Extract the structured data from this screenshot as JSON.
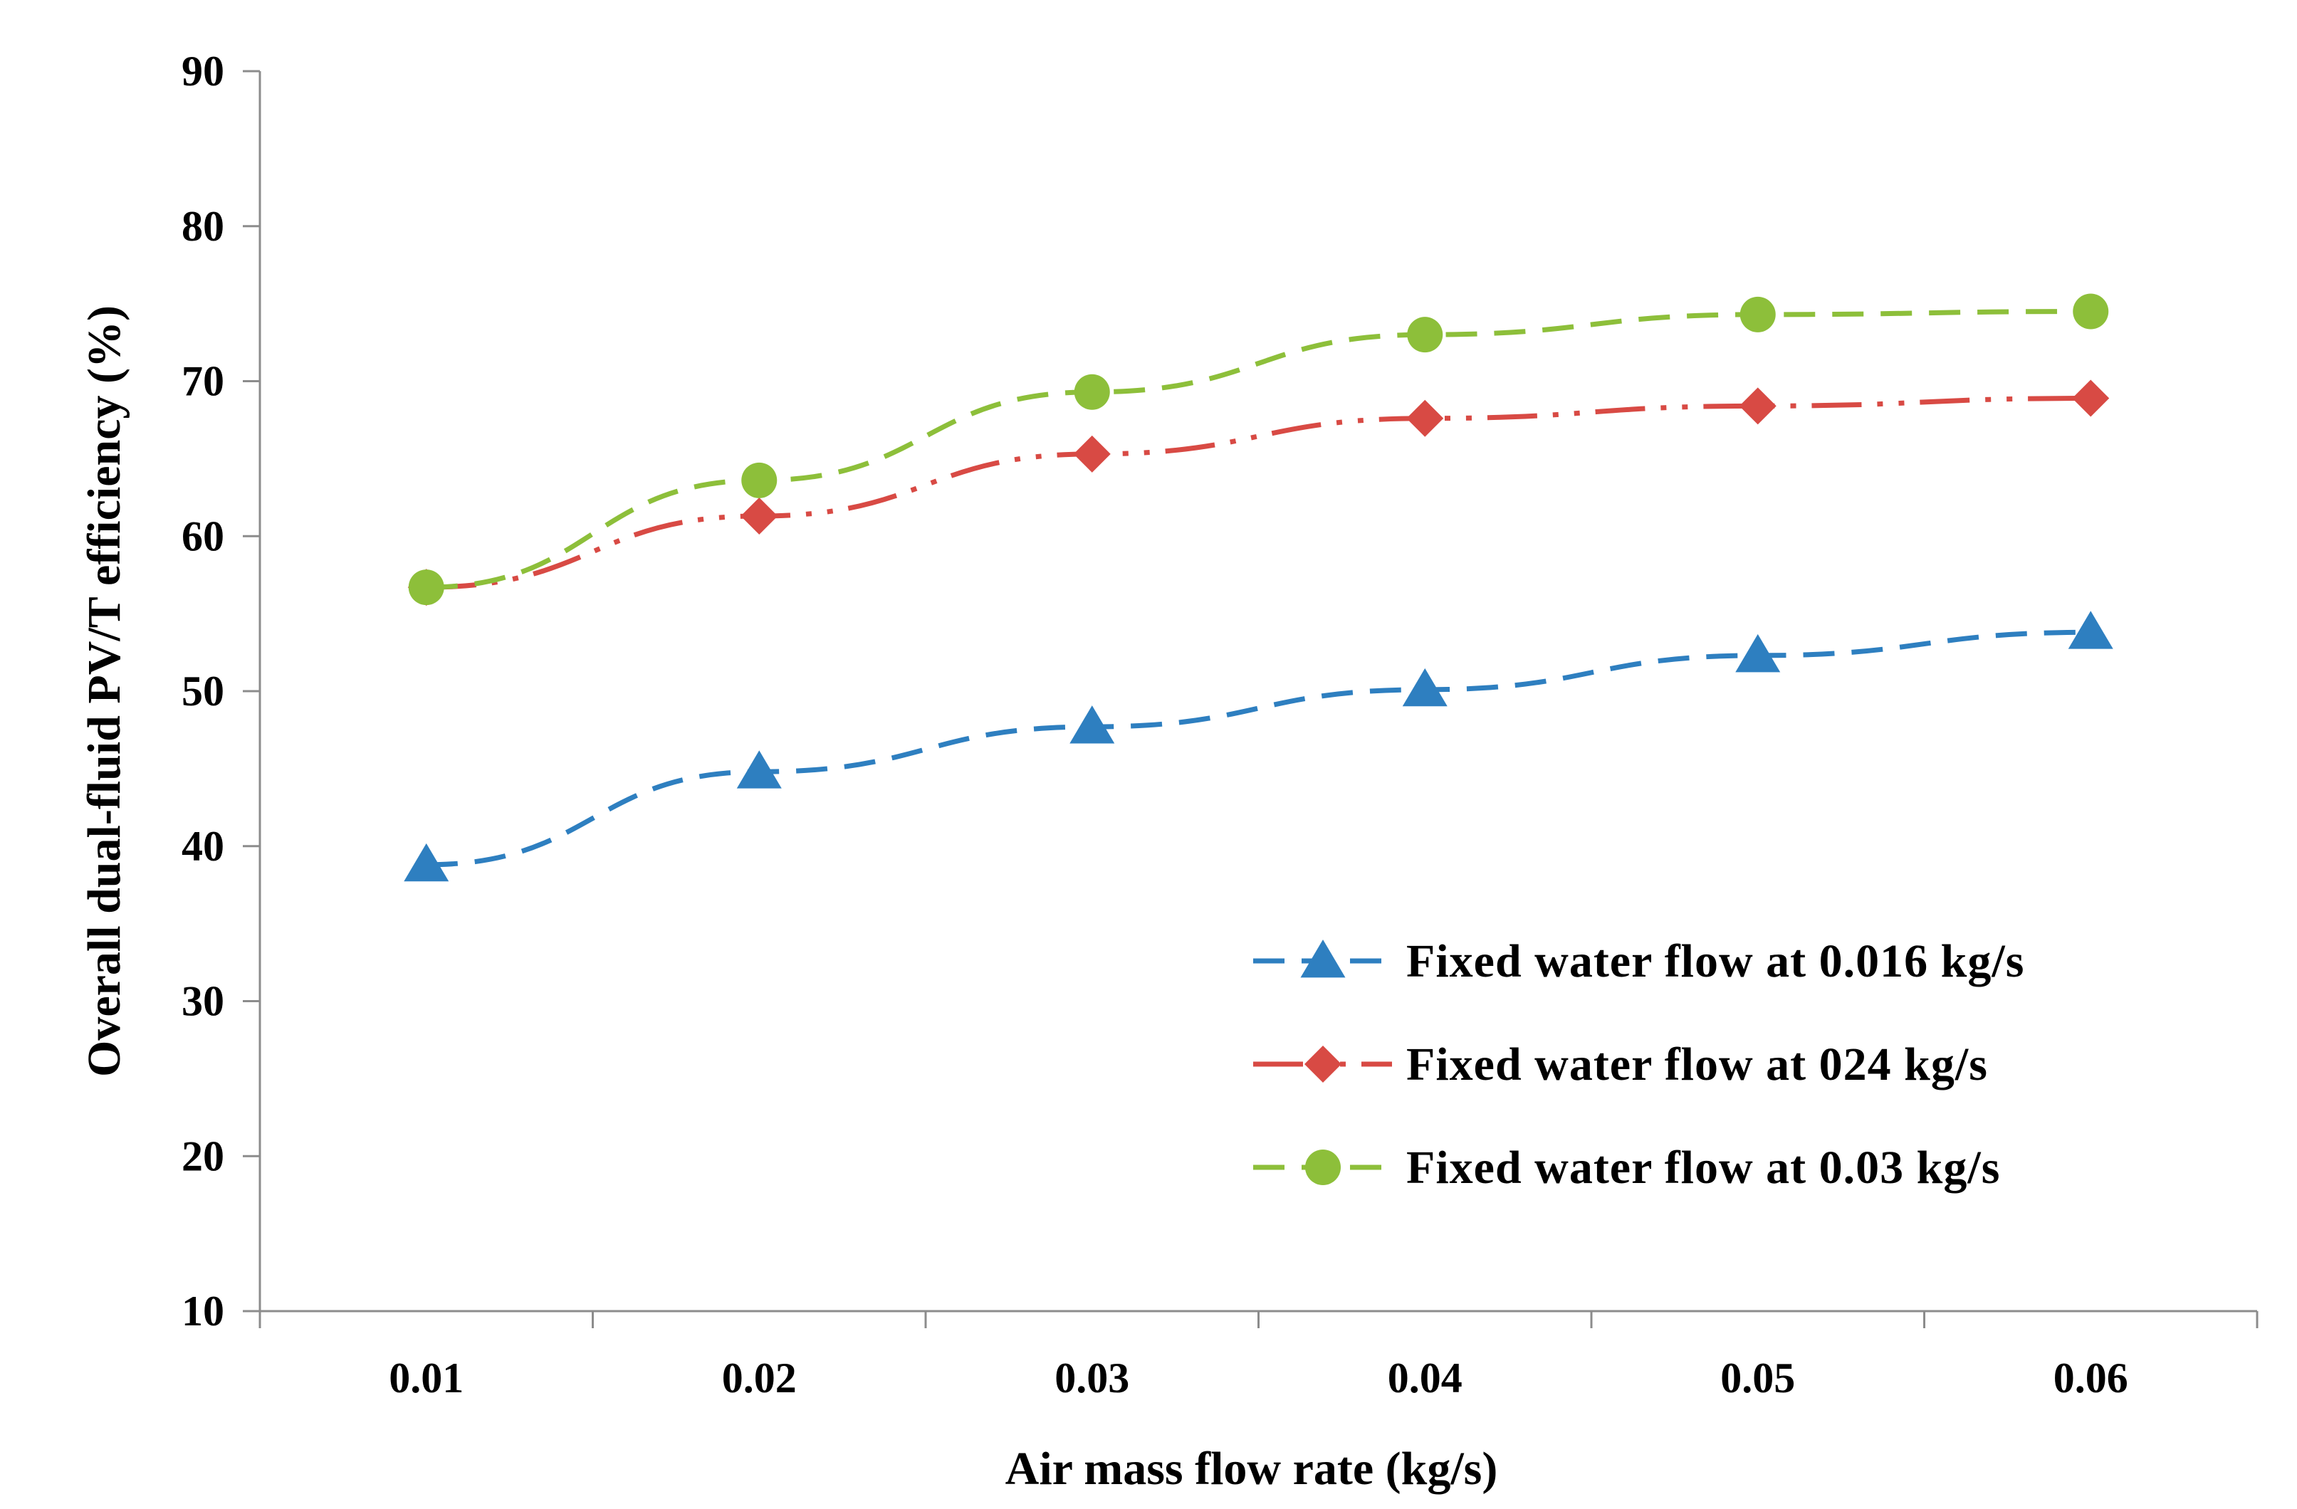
{
  "chart_data": {
    "type": "line",
    "title": "",
    "xlabel": "Air mass flow rate (kg/s)",
    "ylabel": "Overall dual-fluid PV/T efficiency (%)",
    "x": [
      0.01,
      0.02,
      0.03,
      0.04,
      0.05,
      0.06
    ],
    "x_tick_labels": [
      "0.01",
      "0.02",
      "0.03",
      "0.04",
      "0.05",
      "0.06"
    ],
    "y_ticks": [
      10,
      20,
      30,
      40,
      50,
      60,
      70,
      80,
      90
    ],
    "y_tick_labels": [
      "10",
      "20",
      "30",
      "40",
      "50",
      "60",
      "70",
      "80",
      "90"
    ],
    "ylim": [
      10,
      90
    ],
    "grid": false,
    "legend_position": "bottom-right",
    "series": [
      {
        "name": "Fixed water flow at 0.016 kg/s",
        "values": [
          38.8,
          44.8,
          47.7,
          50.1,
          52.3,
          53.8
        ],
        "color": "#2e7fc0",
        "marker": "triangle",
        "line_style": "dashed"
      },
      {
        "name": "Fixed water flow at 024 kg/s",
        "values": [
          56.7,
          61.3,
          65.3,
          67.6,
          68.4,
          68.9
        ],
        "color": "#d84a44",
        "marker": "diamond",
        "line_style": "dash-dot-dot"
      },
      {
        "name": "Fixed water flow at 0.03 kg/s",
        "values": [
          56.7,
          63.6,
          69.3,
          73.0,
          74.3,
          74.5
        ],
        "color": "#8dbf3a",
        "marker": "circle",
        "line_style": "dashed"
      }
    ]
  }
}
